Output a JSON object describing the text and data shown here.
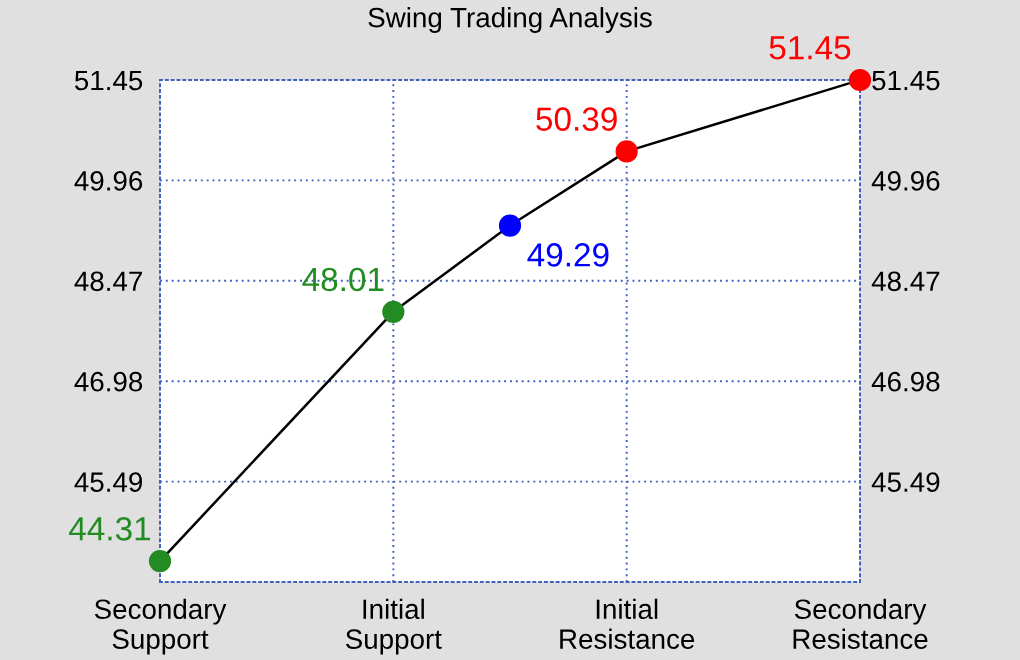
{
  "chart_data": {
    "type": "line",
    "title": "Swing Trading Analysis",
    "categories": [
      "Secondary\nSupport",
      null,
      "Initial\nSupport",
      null,
      "Initial\nResistance",
      null,
      "Secondary\nResistance"
    ],
    "values": [
      44.31,
      null,
      48.01,
      49.29,
      50.39,
      null,
      51.45
    ],
    "colors": [
      "#228b22",
      null,
      "#228b22",
      "#0000ff",
      "#ff0000",
      null,
      "#ff0000"
    ],
    "color": "#000000",
    "marker": "circle",
    "data_labels": true,
    "ylim": [
      44.0,
      51.45
    ],
    "yticks": [
      45.49,
      46.98,
      48.47,
      49.96,
      51.45
    ],
    "y2lim": [
      44.0,
      51.45
    ],
    "y2ticks": [
      45.49,
      46.98,
      48.47,
      49.96,
      51.45
    ],
    "grid": true
  }
}
